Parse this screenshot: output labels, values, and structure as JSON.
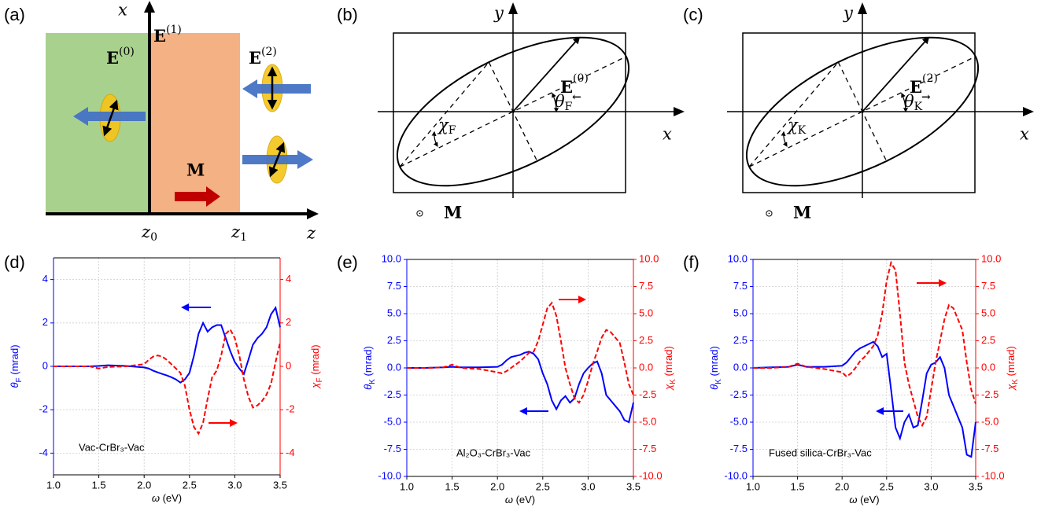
{
  "diagrams": {
    "a": {
      "panel_label": "(a)",
      "axis_x": "x",
      "axis_z": "z",
      "field_0": {
        "base": "E",
        "sup": "(0)"
      },
      "field_1": {
        "base": "E",
        "sup": "(1)"
      },
      "field_2": {
        "base": "E",
        "sup": "(2)"
      },
      "magnet": "M",
      "z0": {
        "base": "z",
        "sub": "0"
      },
      "z1": {
        "base": "z",
        "sub": "1"
      }
    },
    "b": {
      "panel_label": "(b)",
      "axis_x": "x",
      "axis_y": "y",
      "field": {
        "base": "E",
        "sub": "←",
        "sup": "(0)"
      },
      "angle": {
        "base": "θ",
        "sub": "F"
      },
      "ellipticity": {
        "base": "χ",
        "sub": "F"
      },
      "magnet_symbol": "⊙",
      "magnet": "M"
    },
    "c": {
      "panel_label": "(c)",
      "axis_x": "x",
      "axis_y": "y",
      "field": {
        "base": "E",
        "sub": "→",
        "sup": "(2)"
      },
      "angle": {
        "base": "θ",
        "sub": "K"
      },
      "ellipticity": {
        "base": "χ",
        "sub": "K"
      },
      "magnet_symbol": "⊙",
      "magnet": "M"
    }
  },
  "chart_data": [
    {
      "type": "line",
      "panel_label": "(d)",
      "annotation": "Vac-CrBr₃-Vac",
      "xlabel": {
        "base": "ω",
        "unit": " (eV)"
      },
      "ylabel": {
        "base": "θ",
        "sub": "F",
        "unit": " (mrad)"
      },
      "y2label": {
        "base": "χ",
        "sub": "F",
        "unit": " (mrad)"
      },
      "x": [
        1.0,
        1.2,
        1.4,
        1.5,
        1.6,
        1.8,
        2.0,
        2.05,
        2.1,
        2.15,
        2.2,
        2.25,
        2.3,
        2.35,
        2.4,
        2.45,
        2.5,
        2.55,
        2.6,
        2.65,
        2.7,
        2.75,
        2.8,
        2.85,
        2.9,
        2.95,
        3.0,
        3.05,
        3.1,
        3.15,
        3.2,
        3.25,
        3.3,
        3.35,
        3.4,
        3.45,
        3.5
      ],
      "series": [
        {
          "color": "#0000ff",
          "axis": "y",
          "values": [
            0,
            0,
            0,
            0.02,
            0.05,
            0.02,
            -0.05,
            -0.1,
            -0.2,
            -0.28,
            -0.35,
            -0.42,
            -0.5,
            -0.6,
            -0.75,
            -0.6,
            -0.3,
            0.5,
            1.5,
            2.0,
            1.6,
            1.8,
            1.9,
            1.9,
            1.3,
            0.7,
            0.2,
            -0.1,
            -0.35,
            0.3,
            1.0,
            1.3,
            1.5,
            1.8,
            2.4,
            2.7,
            1.8
          ]
        },
        {
          "color": "#ff0000",
          "axis": "y2",
          "values": [
            0,
            0,
            0,
            -0.1,
            -0.03,
            0,
            0.1,
            0.3,
            0.45,
            0.5,
            0.45,
            0.3,
            0.1,
            -0.1,
            -0.3,
            -0.9,
            -2.0,
            -2.8,
            -3.1,
            -2.6,
            -1.5,
            -0.5,
            -0.2,
            0.5,
            1.5,
            1.7,
            1.3,
            0.5,
            -0.6,
            -1.4,
            -1.9,
            -1.8,
            -1.6,
            -1.3,
            -0.8,
            0.2,
            1.1
          ]
        }
      ],
      "xlim": [
        1.0,
        3.5
      ],
      "xticks": [
        {
          "value": 1.0,
          "label": "1.0"
        },
        {
          "value": 1.5,
          "label": "1.5"
        },
        {
          "value": 2.0,
          "label": "2.0"
        },
        {
          "value": 2.5,
          "label": "2.5"
        },
        {
          "value": 3.0,
          "label": "3.0"
        },
        {
          "value": 3.5,
          "label": "3.5"
        }
      ],
      "ylim": [
        -5,
        5
      ],
      "yticks": [
        -4,
        -2,
        0,
        2,
        4
      ],
      "y2lim": [
        -5,
        5
      ],
      "y2ticks": [
        -4,
        -2,
        0,
        2,
        4
      ],
      "grid": true
    },
    {
      "type": "line",
      "panel_label": "(e)",
      "annotation": "Al₂O₃-CrBr₃-Vac",
      "xlabel": {
        "base": "ω",
        "unit": " (eV)"
      },
      "ylabel": {
        "base": "θ",
        "sub": "K",
        "unit": " (mrad)"
      },
      "y2label": {
        "base": "χ",
        "sub": "K",
        "unit": " (mrad)"
      },
      "x": [
        1.0,
        1.2,
        1.4,
        1.5,
        1.6,
        1.8,
        2.0,
        2.05,
        2.1,
        2.15,
        2.2,
        2.25,
        2.3,
        2.35,
        2.4,
        2.45,
        2.5,
        2.55,
        2.6,
        2.65,
        2.7,
        2.75,
        2.8,
        2.85,
        2.9,
        2.95,
        3.0,
        3.05,
        3.1,
        3.15,
        3.2,
        3.25,
        3.3,
        3.35,
        3.4,
        3.45,
        3.5
      ],
      "series": [
        {
          "color": "#0000ff",
          "axis": "y",
          "values": [
            0,
            0,
            0.05,
            0.1,
            0.05,
            0.05,
            0.1,
            0.3,
            0.7,
            1.0,
            1.1,
            1.2,
            1.4,
            1.5,
            1.3,
            0.8,
            -0.5,
            -1.5,
            -3.0,
            -3.8,
            -3.0,
            -2.6,
            -3.2,
            -2.8,
            -1.5,
            -0.5,
            0.0,
            0.4,
            0.6,
            -0.5,
            -2.5,
            -3.0,
            -3.5,
            -4.0,
            -4.8,
            -5.0,
            -3.2
          ]
        },
        {
          "color": "#ff0000",
          "axis": "y2",
          "values": [
            0,
            0,
            0.05,
            0.3,
            0,
            -0.1,
            -0.4,
            -0.5,
            -0.3,
            0.0,
            0.3,
            0.6,
            1.0,
            1.4,
            1.5,
            2.5,
            4.0,
            5.5,
            6.0,
            4.8,
            2.5,
            0.0,
            -1.5,
            -2.8,
            -3.2,
            -2.5,
            -1.2,
            0.3,
            1.5,
            2.8,
            3.5,
            3.3,
            2.8,
            2.3,
            0.5,
            -1.5,
            -2.5
          ]
        }
      ],
      "xlim": [
        1.0,
        3.5
      ],
      "xticks": [
        {
          "value": 1.0,
          "label": "1.0"
        },
        {
          "value": 1.5,
          "label": "1.5"
        },
        {
          "value": 2.0,
          "label": "2.0"
        },
        {
          "value": 2.5,
          "label": "2.5"
        },
        {
          "value": 3.0,
          "label": "3.0"
        },
        {
          "value": 3.5,
          "label": "3.5"
        }
      ],
      "ylim": [
        -10,
        10
      ],
      "yticks": [
        {
          "value": -10,
          "label": "-10.0"
        },
        {
          "value": -7.5,
          "label": "-7.5"
        },
        {
          "value": -5,
          "label": "-5.0"
        },
        {
          "value": -2.5,
          "label": "-2.5"
        },
        {
          "value": 0,
          "label": "0.0"
        },
        {
          "value": 2.5,
          "label": "2.5"
        },
        {
          "value": 5,
          "label": "5.0"
        },
        {
          "value": 7.5,
          "label": "7.5"
        },
        {
          "value": 10,
          "label": "10.0"
        }
      ],
      "y2lim": [
        -10,
        10
      ],
      "y2ticks": [
        {
          "value": -10,
          "label": "-10.0"
        },
        {
          "value": -7.5,
          "label": "-7.5"
        },
        {
          "value": -5,
          "label": "-5.0"
        },
        {
          "value": -2.5,
          "label": "-2.5"
        },
        {
          "value": 0,
          "label": "0.0"
        },
        {
          "value": 2.5,
          "label": "2.5"
        },
        {
          "value": 5,
          "label": "5.0"
        },
        {
          "value": 7.5,
          "label": "7.5"
        },
        {
          "value": 10,
          "label": "10.0"
        }
      ],
      "grid": true
    },
    {
      "type": "line",
      "panel_label": "(f)",
      "annotation": "Fused silica-CrBr₃-Vac",
      "xlabel": {
        "base": "ω",
        "unit": " (eV)"
      },
      "ylabel": {
        "base": "θ",
        "sub": "K",
        "unit": " (mrad)"
      },
      "y2label": {
        "base": "χ",
        "sub": "K",
        "unit": " (mrad)"
      },
      "x": [
        1.0,
        1.2,
        1.4,
        1.5,
        1.6,
        1.8,
        2.0,
        2.05,
        2.1,
        2.15,
        2.2,
        2.25,
        2.3,
        2.35,
        2.4,
        2.45,
        2.5,
        2.55,
        2.6,
        2.65,
        2.7,
        2.75,
        2.8,
        2.85,
        2.9,
        2.95,
        3.0,
        3.05,
        3.1,
        3.15,
        3.2,
        3.25,
        3.3,
        3.35,
        3.4,
        3.45,
        3.5
      ],
      "series": [
        {
          "color": "#0000ff",
          "axis": "y",
          "values": [
            0,
            0.05,
            0.1,
            0.3,
            0.1,
            0.1,
            0.2,
            0.5,
            1.0,
            1.5,
            1.8,
            2.0,
            2.2,
            2.4,
            2.0,
            1.0,
            1.3,
            -2.0,
            -5.5,
            -6.5,
            -5.0,
            -4.3,
            -5.5,
            -5.3,
            -3.0,
            -0.5,
            0.3,
            0.5,
            1.0,
            0.0,
            -2.5,
            -3.5,
            -4.5,
            -5.5,
            -8.0,
            -8.2,
            -5.0
          ]
        },
        {
          "color": "#ff0000",
          "axis": "y2",
          "values": [
            0,
            0,
            0.1,
            0.4,
            0.1,
            -0.1,
            -0.4,
            -0.8,
            -0.5,
            0.0,
            0.6,
            1.0,
            1.5,
            2.0,
            3.0,
            5.0,
            8.0,
            9.7,
            9.0,
            5.0,
            0.5,
            -1.5,
            -3.0,
            -4.5,
            -5.3,
            -4.5,
            -2.0,
            0.5,
            2.5,
            4.5,
            5.8,
            5.5,
            4.5,
            3.5,
            0.5,
            -2.0,
            -3.3
          ]
        }
      ],
      "xlim": [
        1.0,
        3.5
      ],
      "xticks": [
        {
          "value": 1.0,
          "label": "1.0"
        },
        {
          "value": 1.5,
          "label": "1.5"
        },
        {
          "value": 2.0,
          "label": "2.0"
        },
        {
          "value": 2.5,
          "label": "2.5"
        },
        {
          "value": 3.0,
          "label": "3.0"
        },
        {
          "value": 3.5,
          "label": "3.5"
        }
      ],
      "ylim": [
        -10,
        10
      ],
      "yticks": [
        {
          "value": -10,
          "label": "-10.0"
        },
        {
          "value": -7.5,
          "label": "-7.5"
        },
        {
          "value": -5,
          "label": "-5.0"
        },
        {
          "value": -2.5,
          "label": "-2.5"
        },
        {
          "value": 0,
          "label": "0.0"
        },
        {
          "value": 2.5,
          "label": "2.5"
        },
        {
          "value": 5,
          "label": "5.0"
        },
        {
          "value": 7.5,
          "label": "7.5"
        },
        {
          "value": 10,
          "label": "10.0"
        }
      ],
      "y2lim": [
        -10,
        10
      ],
      "y2ticks": [
        {
          "value": -10,
          "label": "-10.0"
        },
        {
          "value": -7.5,
          "label": "-7.5"
        },
        {
          "value": -5,
          "label": "-5.0"
        },
        {
          "value": -2.5,
          "label": "-2.5"
        },
        {
          "value": 0,
          "label": "0.0"
        },
        {
          "value": 2.5,
          "label": "2.5"
        },
        {
          "value": 5,
          "label": "5.0"
        },
        {
          "value": 7.5,
          "label": "7.5"
        },
        {
          "value": 10,
          "label": "10.0"
        }
      ],
      "grid": true
    }
  ]
}
